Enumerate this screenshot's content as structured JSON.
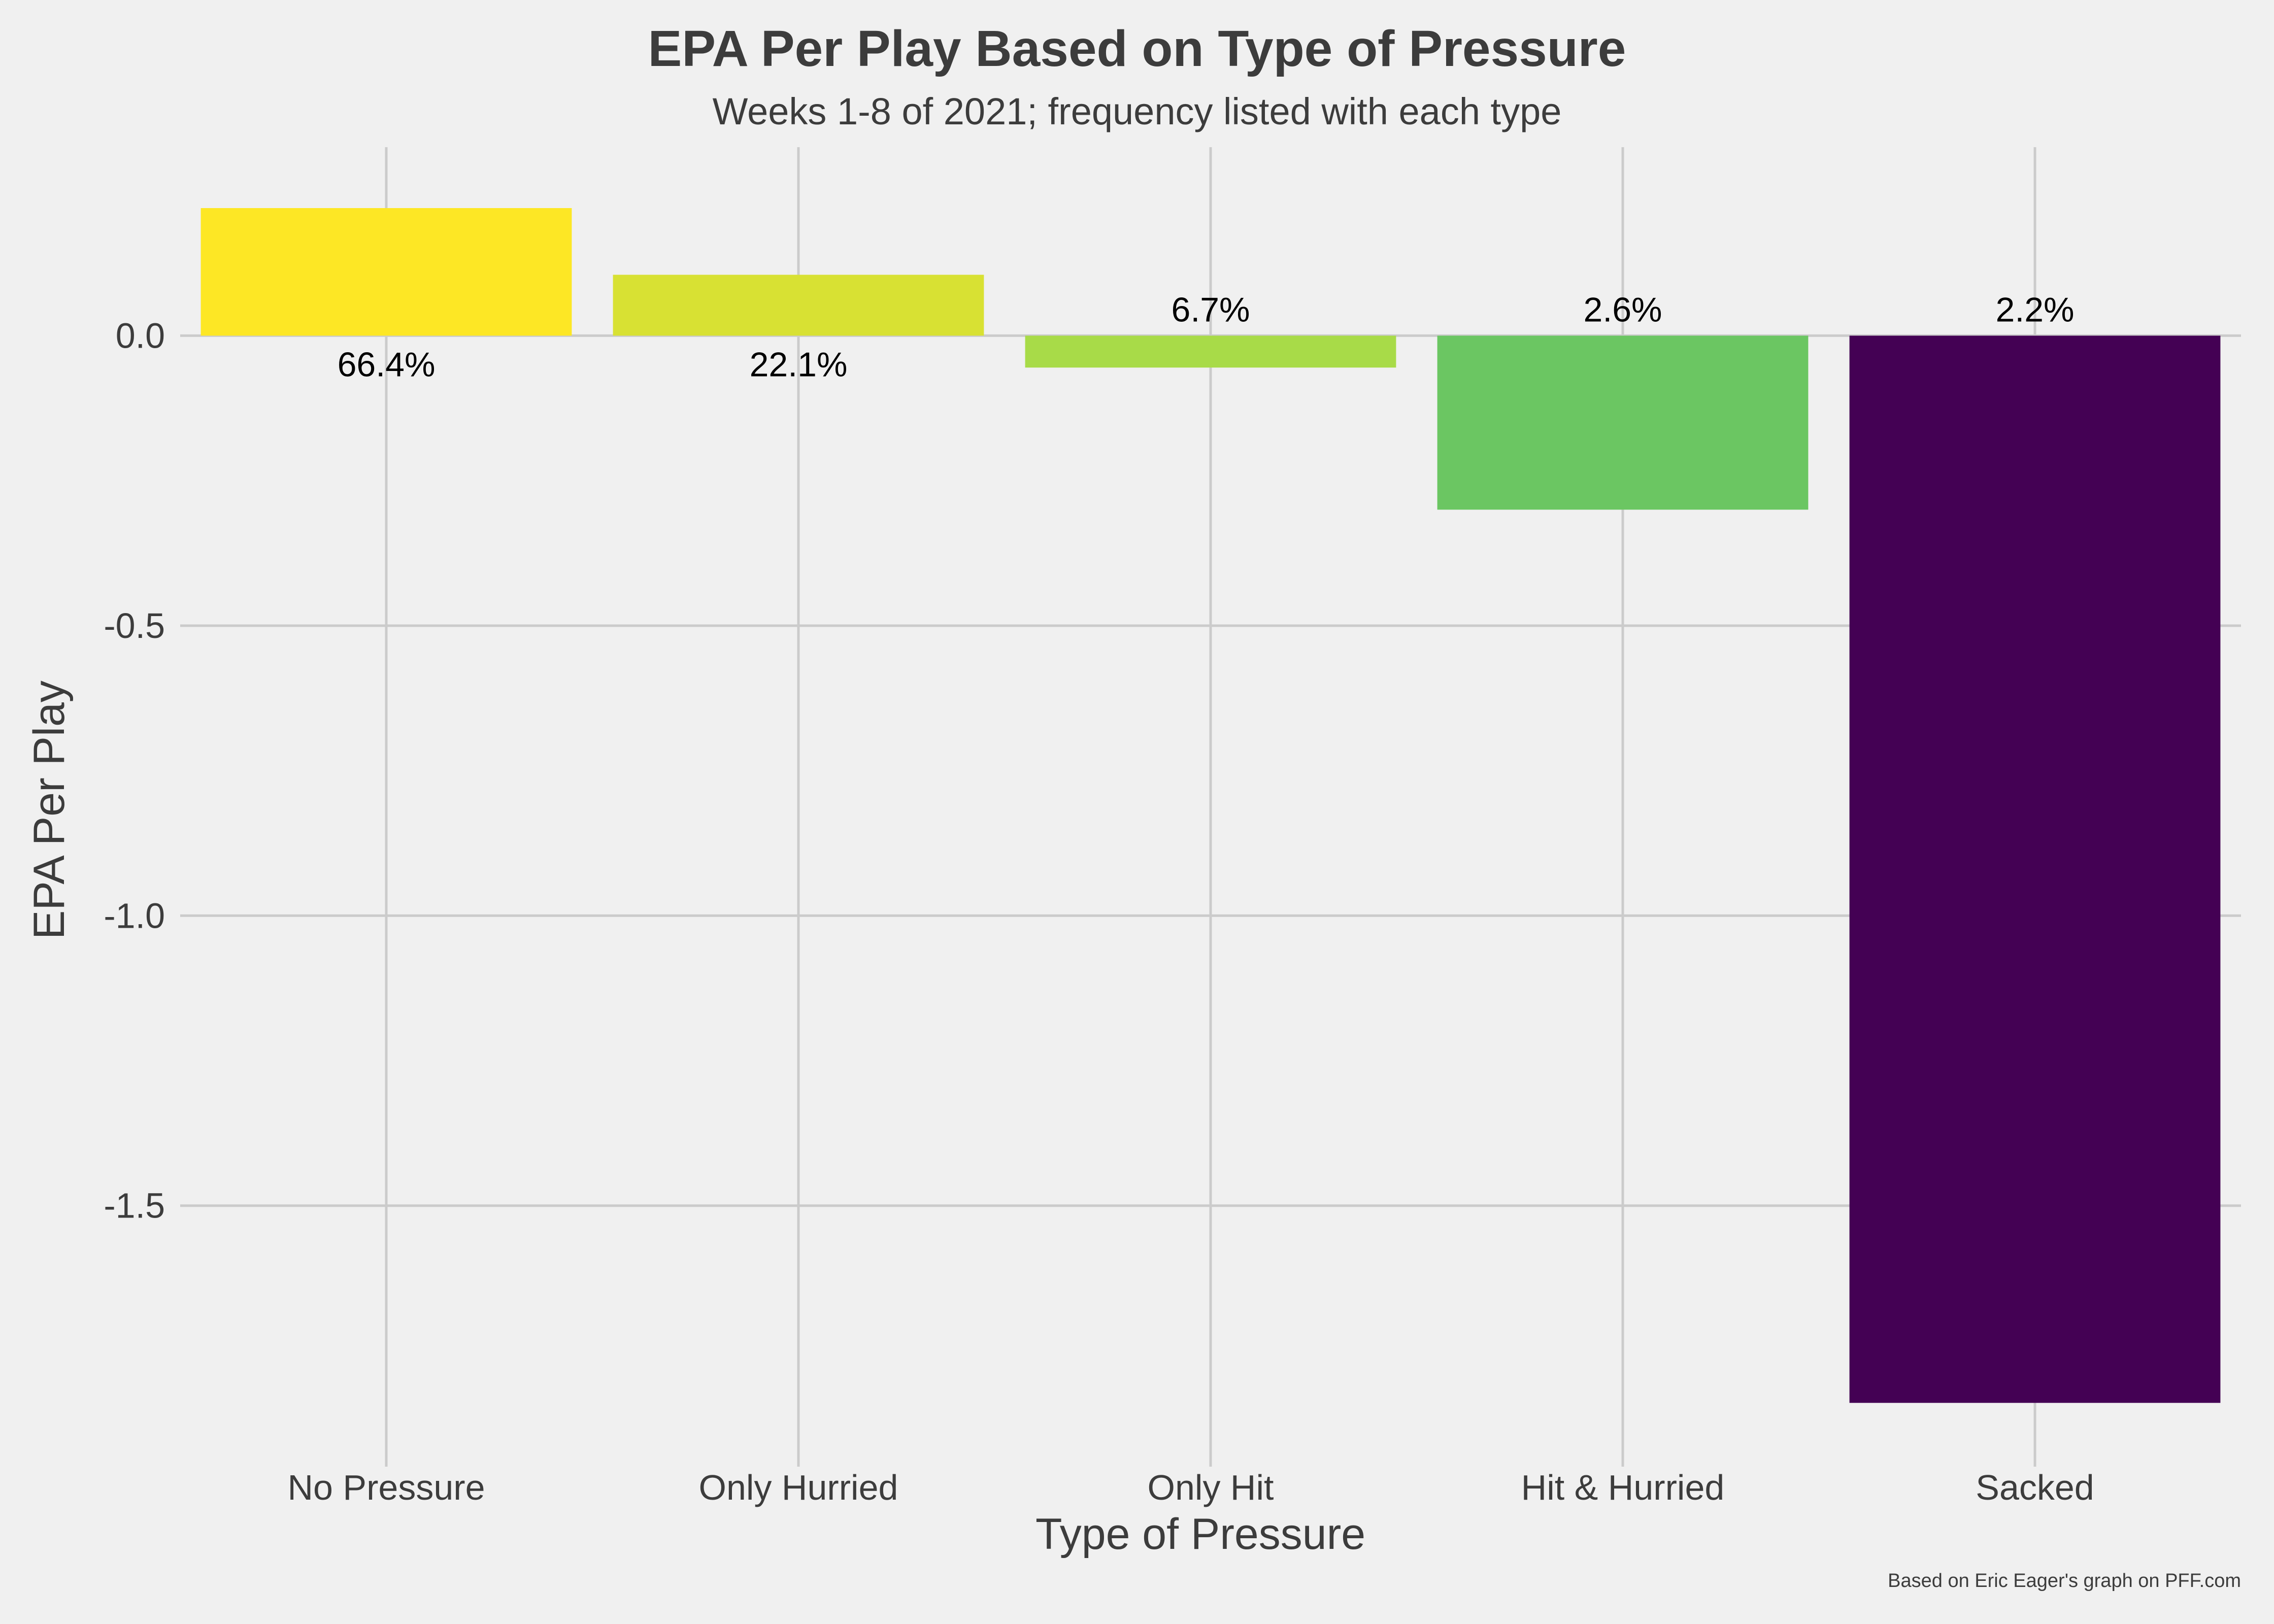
{
  "chart_data": {
    "type": "bar",
    "title": "EPA Per Play Based on Type of Pressure",
    "subtitle": "Weeks 1-8 of 2021; frequency listed with each type",
    "xlabel": "Type of Pressure",
    "ylabel": "EPA Per Play",
    "caption": "Based on Eric Eager's graph on PFF.com",
    "categories": [
      "No Pressure",
      "Only Hurried",
      "Only Hit",
      "Hit & Hurried",
      "Sacked"
    ],
    "values": [
      0.22,
      0.105,
      -0.055,
      -0.3,
      -1.84
    ],
    "frequency_labels": [
      "66.4%",
      "22.1%",
      "6.7%",
      "2.6%",
      "2.2%"
    ],
    "colors": [
      "#fde725",
      "#d8e133",
      "#a8db48",
      "#6bc662",
      "#440154"
    ],
    "yticks": [
      0.0,
      -0.5,
      -1.0,
      -1.5
    ],
    "ytick_labels": [
      "0.0",
      "-0.5",
      "-1.0",
      "-1.5"
    ],
    "ylim": [
      -1.88,
      0.325
    ],
    "grid": true,
    "background": "#f0f0f0",
    "gridline_color": "#cbcbcb",
    "text_color": "#3c3c3c"
  }
}
